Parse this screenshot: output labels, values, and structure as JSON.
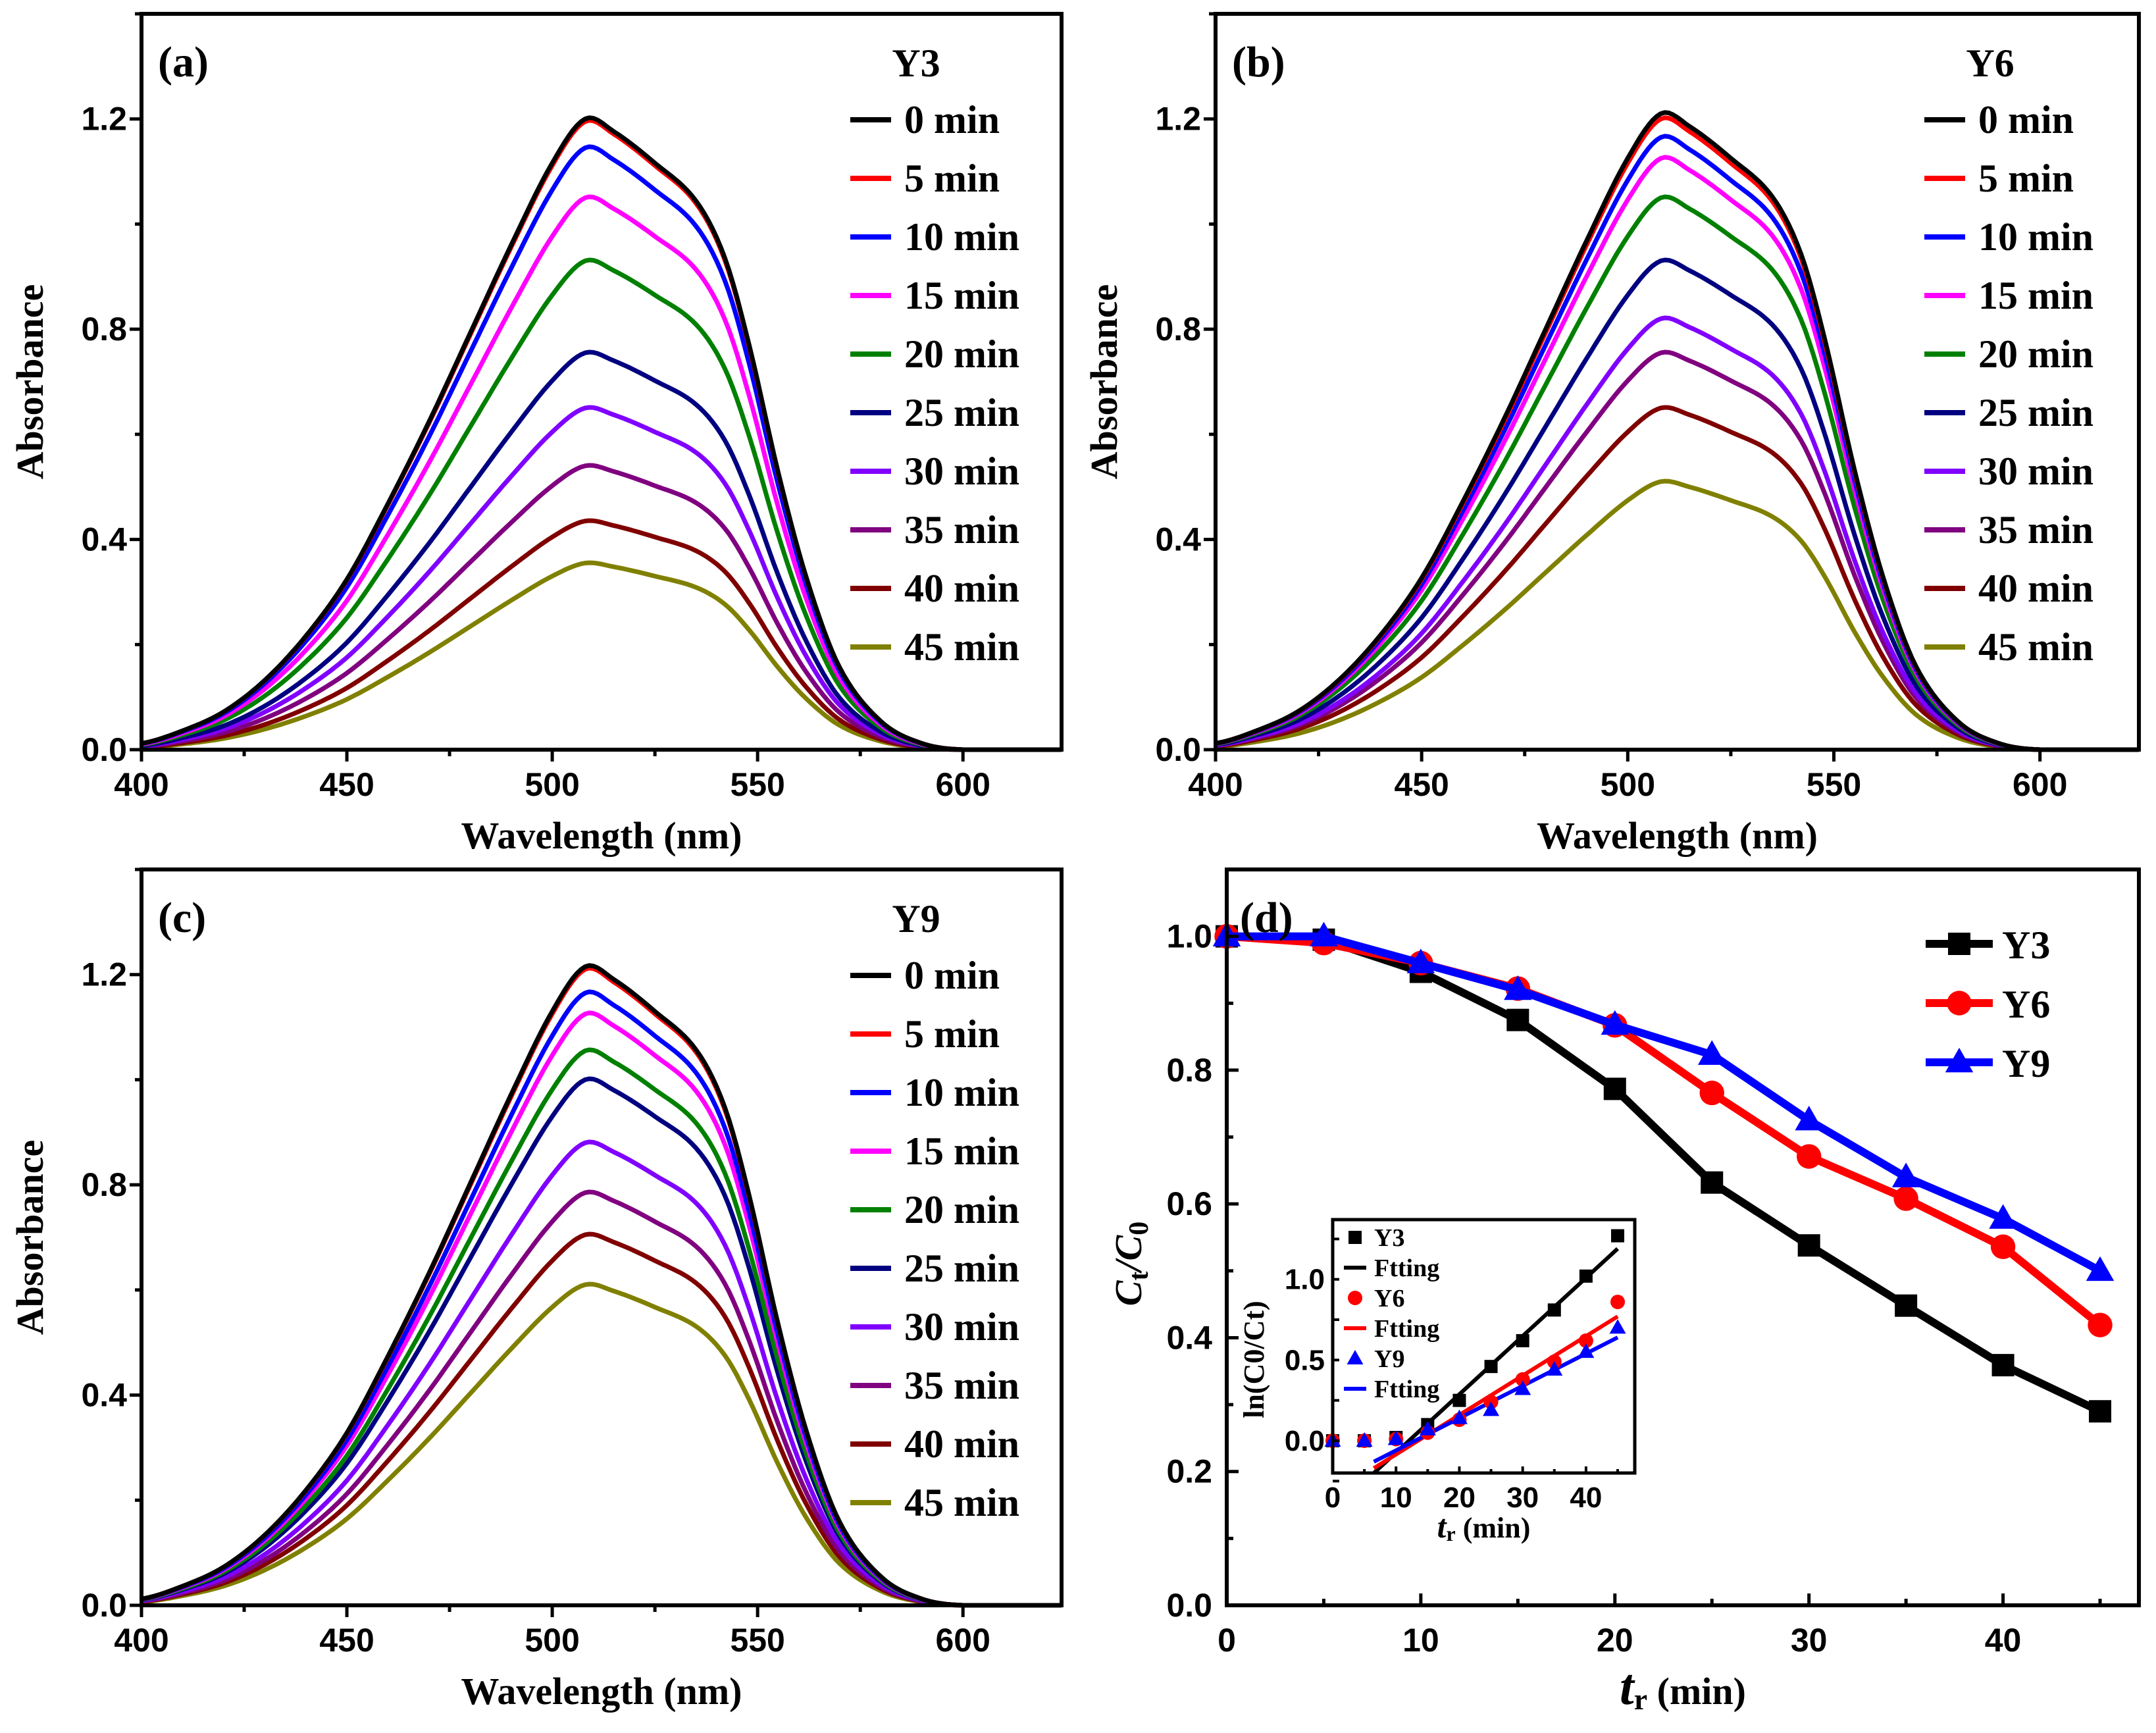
{
  "chart_data": [
    {
      "panel": "(a)",
      "type": "line",
      "title": "Y3",
      "xlabel": "Wavelength (nm)",
      "ylabel": "Absorbance",
      "xlim": [
        400,
        624
      ],
      "ylim": [
        0,
        1.4
      ],
      "xticks": [
        400,
        450,
        500,
        550,
        600
      ],
      "yticks": [
        0.0,
        0.4,
        0.8,
        1.2
      ],
      "legend_position": "top-right",
      "series": [
        {
          "name": "0 min",
          "color": "#000000",
          "peak": 1.2
        },
        {
          "name": "5 min",
          "color": "#FF0000",
          "peak": 1.195
        },
        {
          "name": "10 min",
          "color": "#0000FF",
          "peak": 1.145
        },
        {
          "name": "15 min",
          "color": "#FF00FF",
          "peak": 1.05
        },
        {
          "name": "20 min",
          "color": "#008000",
          "peak": 0.93
        },
        {
          "name": "25 min",
          "color": "#000080",
          "peak": 0.755
        },
        {
          "name": "30 min",
          "color": "#8000FF",
          "peak": 0.65
        },
        {
          "name": "35 min",
          "color": "#800080",
          "peak": 0.54
        },
        {
          "name": "40 min",
          "color": "#800000",
          "peak": 0.435
        },
        {
          "name": "45 min",
          "color": "#808000",
          "peak": 0.355
        }
      ]
    },
    {
      "panel": "(b)",
      "type": "line",
      "title": "Y6",
      "xlabel": "Wavelength (nm)",
      "ylabel": "Absorbance",
      "xlim": [
        400,
        624
      ],
      "ylim": [
        0,
        1.4
      ],
      "xticks": [
        400,
        450,
        500,
        550,
        600
      ],
      "yticks": [
        0.0,
        0.4,
        0.8,
        1.2
      ],
      "legend_position": "top-right",
      "series": [
        {
          "name": "0 min",
          "color": "#000000",
          "peak": 1.21
        },
        {
          "name": "5 min",
          "color": "#FF0000",
          "peak": 1.2
        },
        {
          "name": "10 min",
          "color": "#0000FF",
          "peak": 1.165
        },
        {
          "name": "15 min",
          "color": "#FF00FF",
          "peak": 1.125
        },
        {
          "name": "20 min",
          "color": "#008000",
          "peak": 1.05
        },
        {
          "name": "25 min",
          "color": "#000080",
          "peak": 0.93
        },
        {
          "name": "30 min",
          "color": "#8000FF",
          "peak": 0.82
        },
        {
          "name": "35 min",
          "color": "#800080",
          "peak": 0.755
        },
        {
          "name": "40 min",
          "color": "#800000",
          "peak": 0.65
        },
        {
          "name": "45 min",
          "color": "#808000",
          "peak": 0.51
        }
      ]
    },
    {
      "panel": "(c)",
      "type": "line",
      "title": "Y9",
      "xlabel": "Wavelength (nm)",
      "ylabel": "Absorbance",
      "xlim": [
        400,
        624
      ],
      "ylim": [
        0,
        1.4
      ],
      "xticks": [
        400,
        450,
        500,
        550,
        600
      ],
      "yticks": [
        0.0,
        0.4,
        0.8,
        1.2
      ],
      "legend_position": "top-right",
      "series": [
        {
          "name": "0 min",
          "color": "#000000",
          "peak": 1.215
        },
        {
          "name": "5 min",
          "color": "#FF0000",
          "peak": 1.21
        },
        {
          "name": "10 min",
          "color": "#0000FF",
          "peak": 1.165
        },
        {
          "name": "15 min",
          "color": "#FF00FF",
          "peak": 1.125
        },
        {
          "name": "20 min",
          "color": "#008000",
          "peak": 1.055
        },
        {
          "name": "25 min",
          "color": "#000080",
          "peak": 1.0
        },
        {
          "name": "30 min",
          "color": "#8000FF",
          "peak": 0.88
        },
        {
          "name": "35 min",
          "color": "#800080",
          "peak": 0.785
        },
        {
          "name": "40 min",
          "color": "#800000",
          "peak": 0.705
        },
        {
          "name": "45 min",
          "color": "#808000",
          "peak": 0.61
        }
      ]
    },
    {
      "panel": "(d)",
      "type": "line",
      "xlabel_main": "t",
      "xlabel_sub": "r",
      "xlabel_rest": " (min)",
      "ylabel_main": "C",
      "ylabel_sub": "t",
      "ylabel_mid": "/C",
      "ylabel_sub2": "0",
      "xlim": [
        0,
        47
      ],
      "ylim": [
        0,
        1.1
      ],
      "xticks": [
        0,
        10,
        20,
        30,
        40
      ],
      "yticks": [
        0.0,
        0.2,
        0.4,
        0.6,
        0.8,
        1.0
      ],
      "ytick_labels": [
        "0.0",
        "0.2",
        "0.4",
        "0.6",
        "0.8",
        "1.0"
      ],
      "legend_position": "top-right",
      "x": [
        0,
        5,
        10,
        15,
        20,
        25,
        30,
        35,
        40,
        45
      ],
      "series": [
        {
          "name": "Y3",
          "color": "#000000",
          "marker": "square",
          "values": [
            1.0,
            0.995,
            0.947,
            0.875,
            0.772,
            0.632,
            0.538,
            0.448,
            0.359,
            0.29
          ]
        },
        {
          "name": "Y6",
          "color": "#FF0000",
          "marker": "circle",
          "values": [
            1.0,
            0.99,
            0.96,
            0.922,
            0.867,
            0.766,
            0.671,
            0.608,
            0.536,
            0.419
          ]
        },
        {
          "name": "Y9",
          "color": "#0000FF",
          "marker": "triangle",
          "values": [
            1.0,
            1.0,
            0.96,
            0.92,
            0.868,
            0.823,
            0.725,
            0.64,
            0.578,
            0.5
          ]
        }
      ],
      "inset": {
        "type": "scatter",
        "xlabel_main": "t",
        "xlabel_sub": "r",
        "xlabel_rest": " (min)",
        "ylabel": "ln(C0/Ct)",
        "xlim": [
          0,
          47.7
        ],
        "ylim": [
          -0.2,
          1.37
        ],
        "xticks": [
          0,
          10,
          20,
          30,
          40
        ],
        "yticks": [
          0.0,
          0.5,
          1.0
        ],
        "ytick_labels": [
          "0.0",
          "0.5",
          "1.0"
        ],
        "x": [
          0,
          5,
          10,
          15,
          20,
          25,
          30,
          35,
          40,
          45
        ],
        "series": [
          {
            "name": "Y3",
            "color": "#000000",
            "marker": "square",
            "values": [
              0,
              0,
              0.02,
              0.1,
              0.25,
              0.46,
              0.62,
              0.81,
              1.02,
              1.27
            ]
          },
          {
            "name": "Ftting",
            "color": "#000000",
            "fit": [
              [
                6.5,
                -0.2
              ],
              [
                45,
                1.19
              ]
            ]
          },
          {
            "name": "Y6",
            "color": "#FF0000",
            "marker": "circle",
            "values": [
              0,
              0,
              0.01,
              0.05,
              0.13,
              0.24,
              0.38,
              0.49,
              0.62,
              0.86
            ]
          },
          {
            "name": "Ftting",
            "color": "#FF0000",
            "fit": [
              [
                6.5,
                -0.17
              ],
              [
                45,
                0.77
              ]
            ]
          },
          {
            "name": "Y9",
            "color": "#0000FF",
            "marker": "triangle",
            "values": [
              0,
              0,
              0.01,
              0.07,
              0.14,
              0.19,
              0.32,
              0.44,
              0.55,
              0.7
            ]
          },
          {
            "name": "Ftting",
            "color": "#0000FF",
            "fit": [
              [
                6.5,
                -0.13
              ],
              [
                45,
                0.64
              ]
            ]
          }
        ]
      }
    }
  ],
  "spectrum_profile": {
    "wavelength": [
      400,
      410,
      420,
      430,
      440,
      450,
      460,
      470,
      480,
      490,
      500,
      508,
      515,
      525,
      535,
      542,
      548,
      555,
      562,
      570,
      580,
      590,
      600,
      624
    ],
    "relative": [
      0.01,
      0.03,
      0.06,
      0.11,
      0.18,
      0.27,
      0.39,
      0.52,
      0.66,
      0.8,
      0.93,
      1.0,
      0.98,
      0.93,
      0.87,
      0.78,
      0.64,
      0.44,
      0.27,
      0.13,
      0.045,
      0.01,
      0,
      0
    ]
  }
}
